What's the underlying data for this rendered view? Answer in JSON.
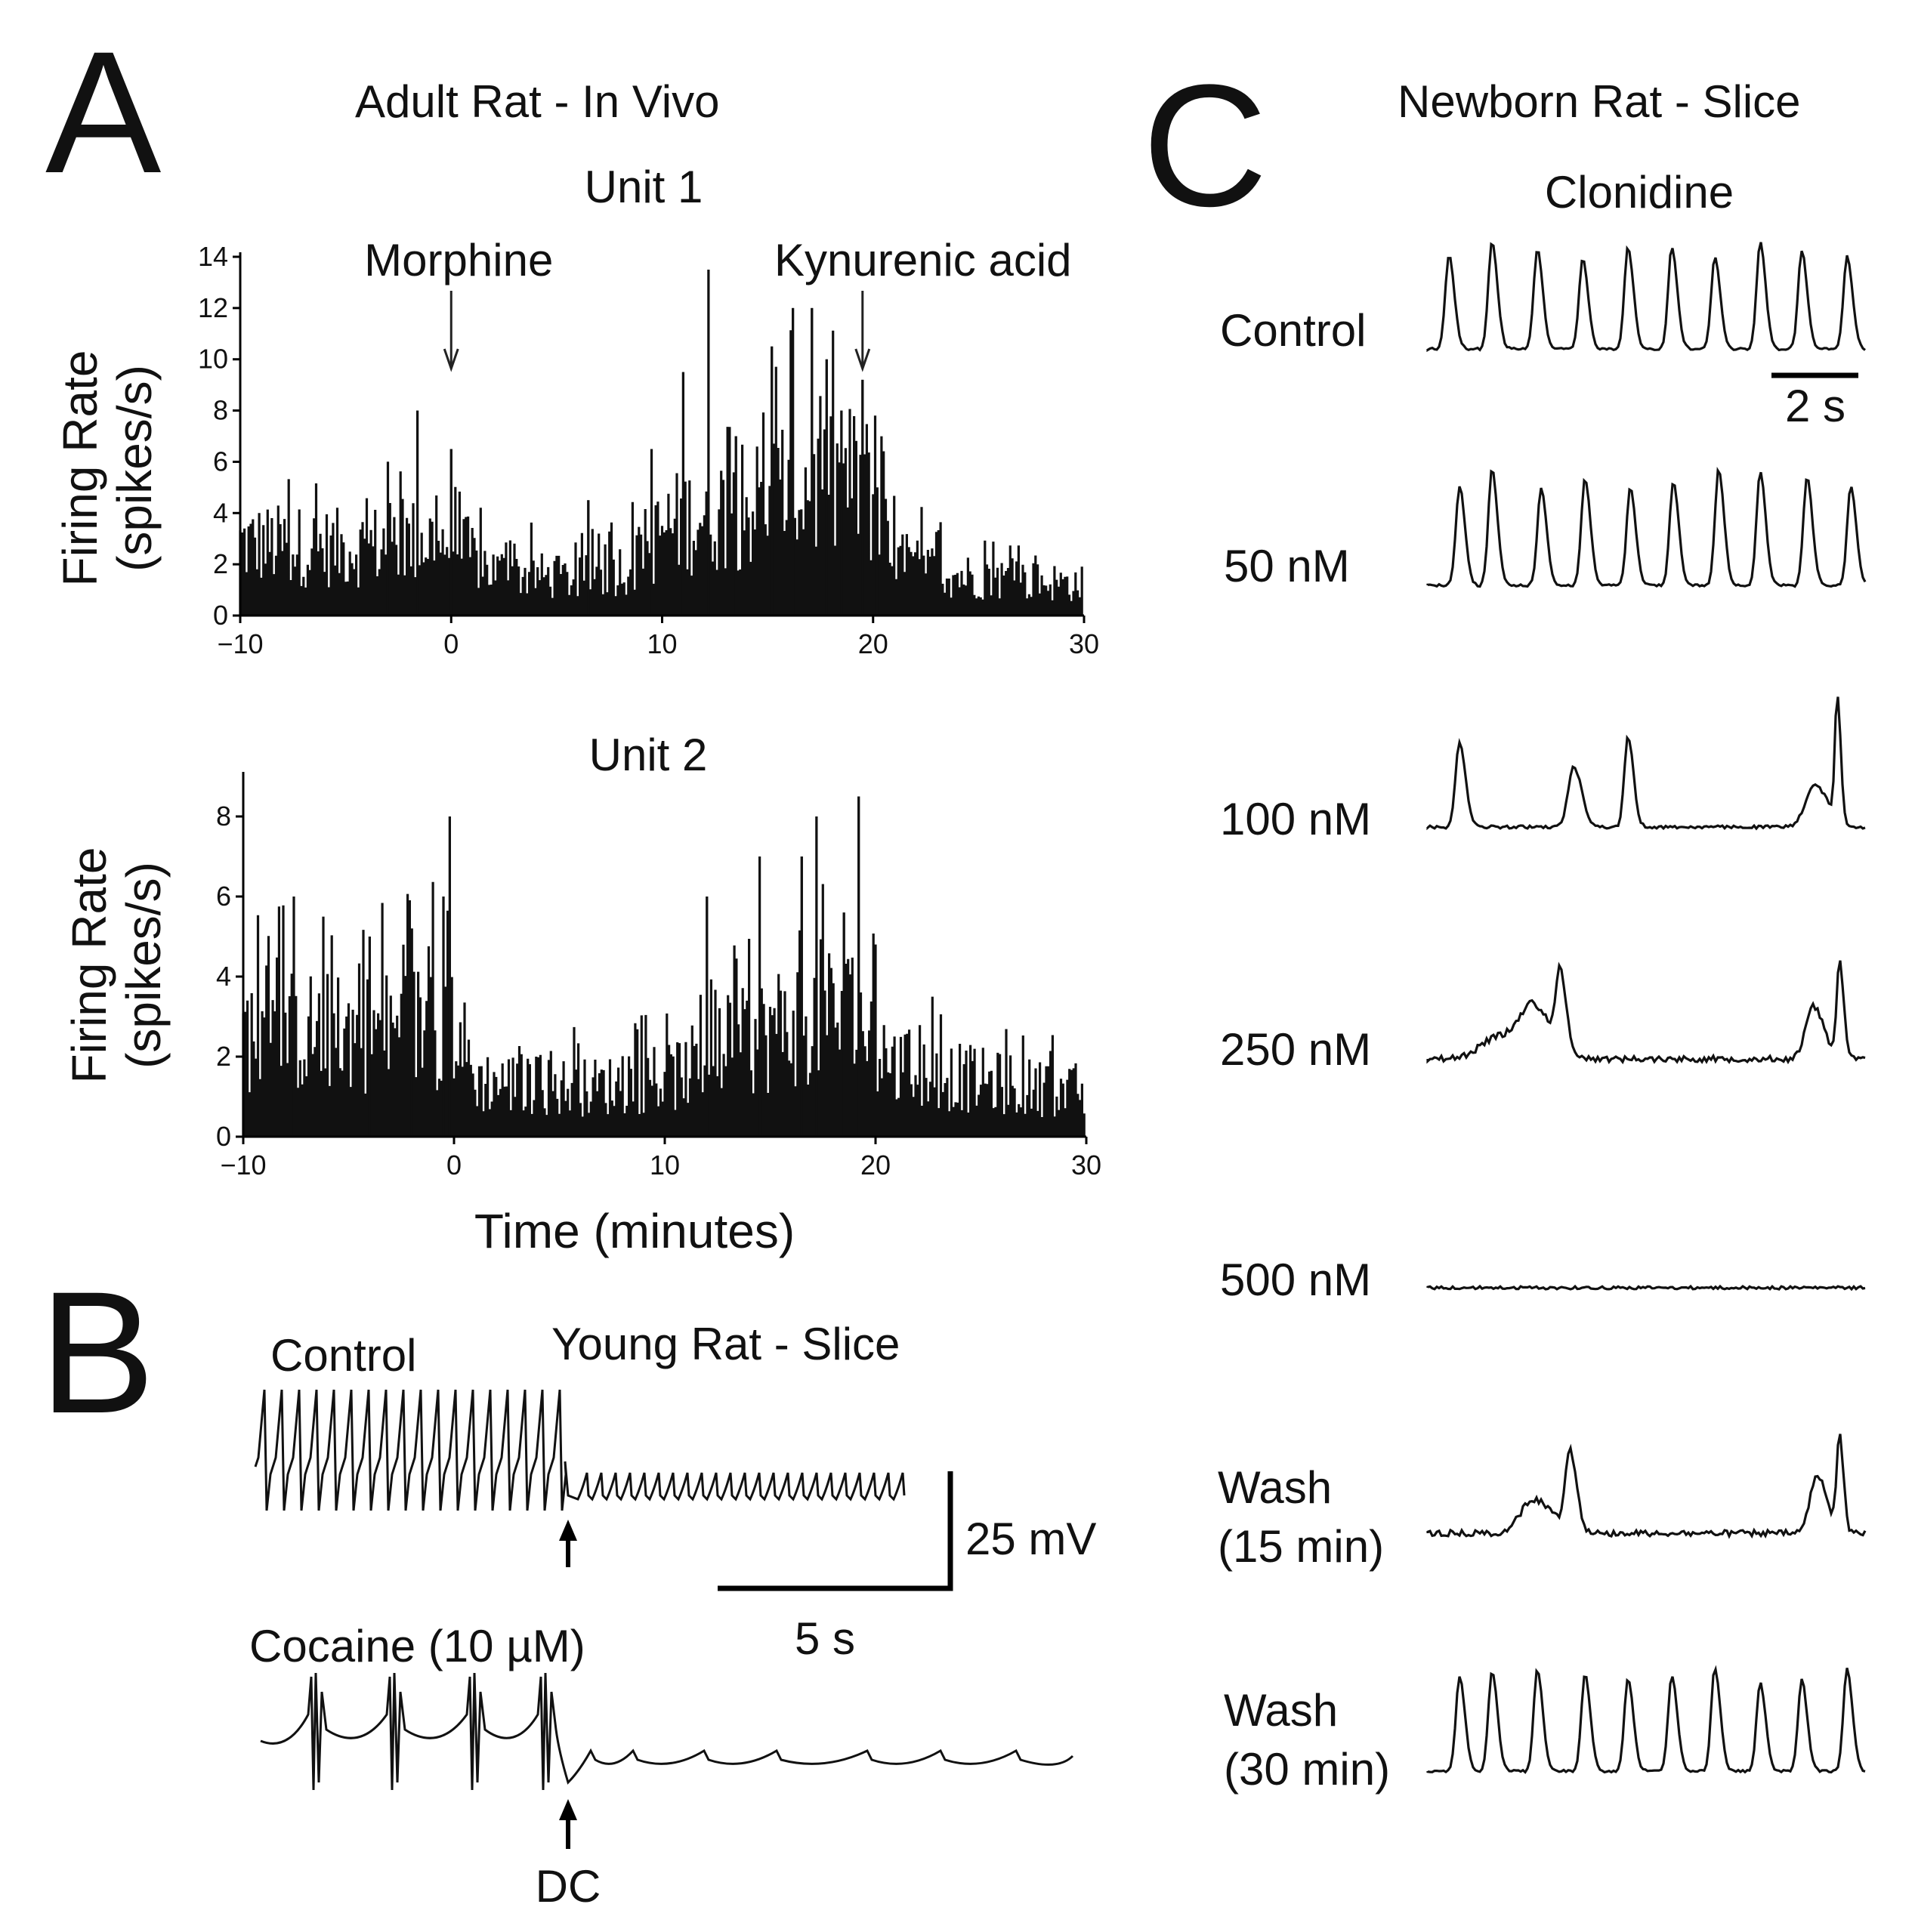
{
  "panels": {
    "A": {
      "letter": "A",
      "title": "Adult Rat - In Vivo",
      "xlabel": "Time (minutes)"
    },
    "B": {
      "letter": "B",
      "title": "Young Rat - Slice",
      "trace1_label": "Control",
      "trace2_label": "Cocaine (10 µM)",
      "scale_voltage": "25 mV",
      "scale_time": "5 s",
      "dc_label": "DC"
    },
    "C": {
      "letter": "C",
      "title": "Newborn Rat - Slice",
      "drug": "Clonidine",
      "scale_time": "2 s",
      "conditions": [
        "Control",
        "50 nM",
        "100 nM",
        "250 nM",
        "500 nM",
        "Wash\n(15 min)",
        "Wash\n(30 min)"
      ]
    }
  },
  "chart_data": [
    {
      "type": "bar",
      "title": "Unit 1",
      "xlabel": "",
      "ylabel": "Firing Rate (spikes/s)",
      "xlim": [
        -10,
        30
      ],
      "ylim": [
        0,
        14
      ],
      "xticks": [
        "−10",
        "0",
        "10",
        "20",
        "30"
      ],
      "yticks": [
        "0",
        "2",
        "4",
        "6",
        "8",
        "10",
        "12",
        "14"
      ],
      "annotations": [
        {
          "text": "Morphine",
          "x": 0
        },
        {
          "text": "Kynurenic acid",
          "x": 19.5
        }
      ],
      "profile": [
        [
          -10,
          3.2
        ],
        [
          -5,
          3.0
        ],
        [
          -1,
          3.4
        ],
        [
          0,
          3.3
        ],
        [
          2,
          2.0
        ],
        [
          6,
          1.6
        ],
        [
          9,
          2.4
        ],
        [
          10,
          3.8
        ],
        [
          12,
          4.6
        ],
        [
          14,
          4.8
        ],
        [
          16,
          5.8
        ],
        [
          18,
          5.6
        ],
        [
          19.5,
          6.2
        ],
        [
          21,
          2.4
        ],
        [
          24,
          1.8
        ],
        [
          30,
          1.4
        ]
      ],
      "peaks": [
        [
          -1.6,
          8
        ],
        [
          -3,
          6
        ],
        [
          0,
          6.5
        ],
        [
          6.5,
          4.5
        ],
        [
          9.5,
          6.5
        ],
        [
          11,
          9.5
        ],
        [
          12.2,
          13.5
        ],
        [
          13.5,
          7
        ],
        [
          15.2,
          10.5
        ],
        [
          16.2,
          12
        ],
        [
          17.1,
          12
        ],
        [
          17.8,
          10
        ],
        [
          18.5,
          8
        ],
        [
          19.5,
          9.2
        ],
        [
          20.2,
          5
        ]
      ]
    },
    {
      "type": "bar",
      "title": "Unit 2",
      "xlabel": "Time (minutes)",
      "ylabel": "Firing Rate (spikes/s)",
      "xlim": [
        -10,
        30
      ],
      "ylim": [
        0,
        9
      ],
      "xticks": [
        "−10",
        "0",
        "10",
        "20",
        "30"
      ],
      "yticks": [
        "0",
        "2",
        "4",
        "6",
        "8"
      ],
      "profile": [
        [
          -10,
          3.0
        ],
        [
          -3,
          3.0
        ],
        [
          0,
          3.4
        ],
        [
          1,
          1.6
        ],
        [
          6,
          1.4
        ],
        [
          10,
          1.6
        ],
        [
          12,
          2.2
        ],
        [
          15,
          3.0
        ],
        [
          17,
          3.6
        ],
        [
          19,
          3.4
        ],
        [
          21,
          2.0
        ],
        [
          25,
          1.6
        ],
        [
          30,
          1.2
        ]
      ],
      "peaks": [
        [
          -9.3,
          5.4
        ],
        [
          -7.6,
          6
        ],
        [
          -4,
          5
        ],
        [
          -2,
          5.2
        ],
        [
          -0.2,
          8
        ],
        [
          -0.5,
          6
        ],
        [
          12,
          6
        ],
        [
          14.5,
          7
        ],
        [
          16.5,
          7
        ],
        [
          17.2,
          8
        ],
        [
          18.5,
          5.6
        ],
        [
          19.2,
          8.5
        ],
        [
          20,
          4.8
        ]
      ]
    }
  ]
}
